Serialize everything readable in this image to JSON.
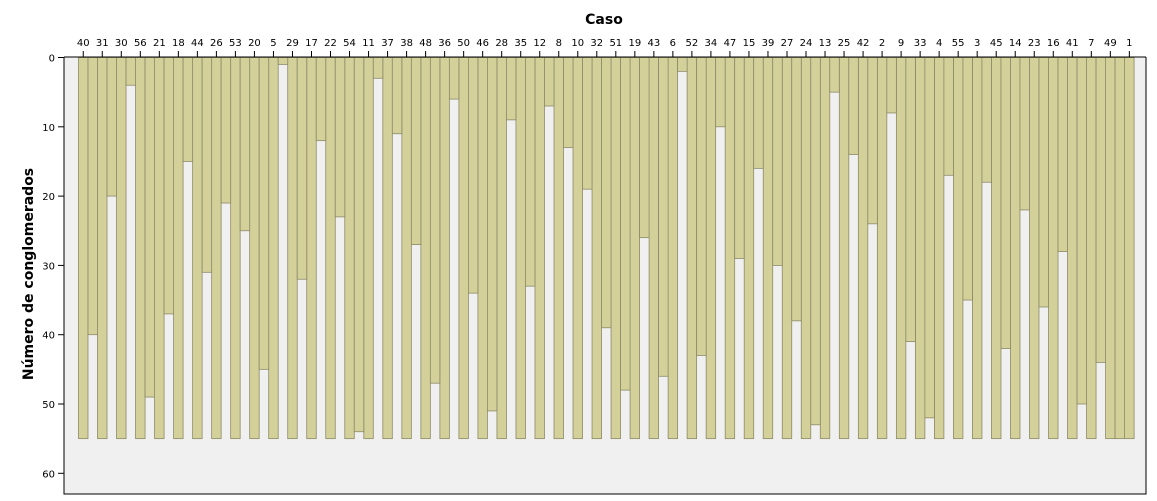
{
  "chart_data": {
    "type": "icicle",
    "title": "",
    "xlabel": "Caso",
    "ylabel": "Número de conglomerados",
    "ylim": [
      0,
      63
    ],
    "yticks": [
      0,
      10,
      20,
      30,
      40,
      50,
      60
    ],
    "grid": false,
    "legend": "none",
    "max_clusters": 55,
    "colors": {
      "fill": "#d3d09a",
      "stroke": "#8d8a68",
      "plot_bg": "#f0f0f0",
      "frame": "#000000"
    },
    "cases": [
      "40",
      "31",
      "30",
      "56",
      "21",
      "18",
      "44",
      "26",
      "53",
      "20",
      "5",
      "29",
      "17",
      "22",
      "54",
      "11",
      "37",
      "38",
      "48",
      "36",
      "50",
      "46",
      "28",
      "35",
      "12",
      "8",
      "10",
      "32",
      "51",
      "19",
      "43",
      "6",
      "52",
      "34",
      "47",
      "15",
      "39",
      "27",
      "24",
      "13",
      "25",
      "42",
      "2",
      "9",
      "33",
      "4",
      "55",
      "3",
      "45",
      "14",
      "23",
      "16",
      "41",
      "7",
      "49",
      "1"
    ],
    "gap_join_levels": [
      40,
      20,
      4,
      49,
      37,
      15,
      31,
      21,
      25,
      45,
      1,
      32,
      12,
      23,
      54,
      3,
      11,
      27,
      47,
      6,
      34,
      51,
      9,
      33,
      7,
      13,
      19,
      39,
      48,
      26,
      46,
      2,
      43,
      10,
      29,
      16,
      30,
      38,
      53,
      5,
      14,
      24,
      8,
      41,
      52,
      17,
      35,
      18,
      42,
      22,
      36,
      28,
      50,
      44,
      55
    ]
  }
}
